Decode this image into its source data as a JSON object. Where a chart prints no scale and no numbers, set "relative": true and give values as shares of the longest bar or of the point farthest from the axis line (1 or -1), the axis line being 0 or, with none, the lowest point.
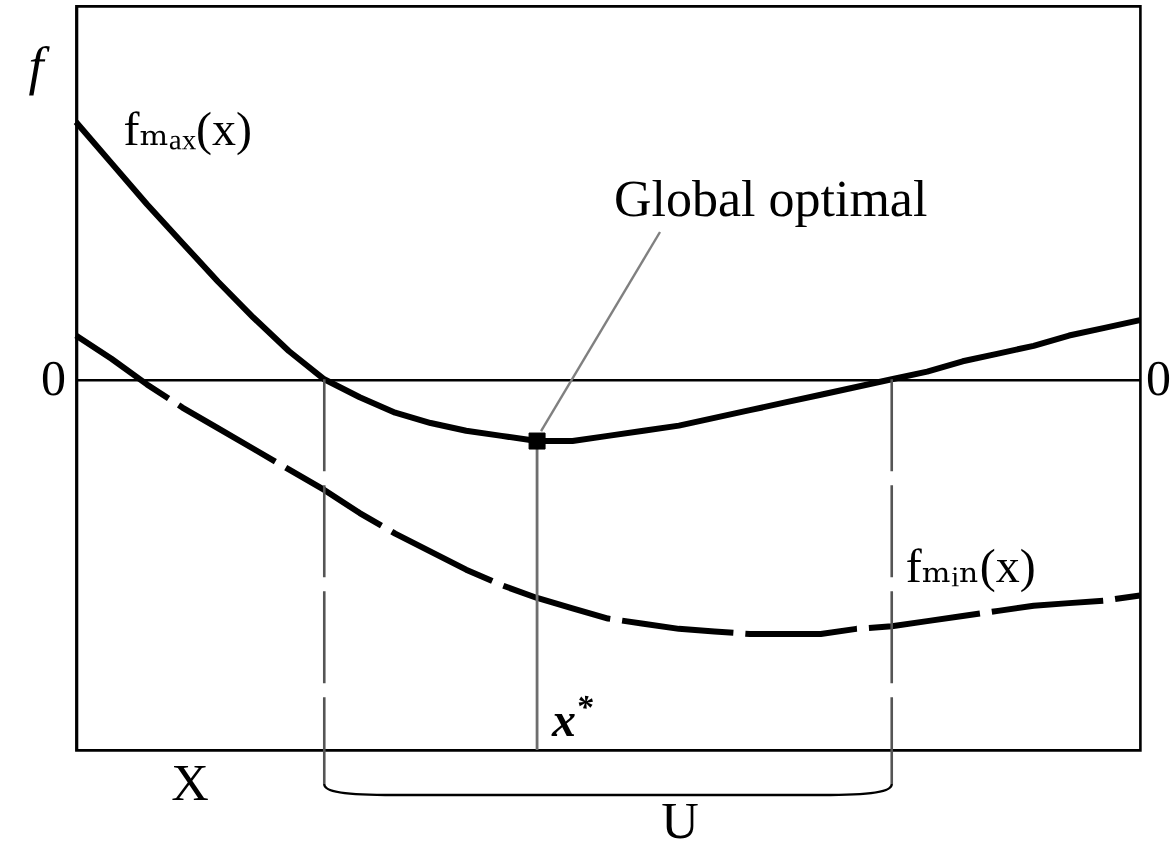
{
  "chart_data": {
    "type": "line",
    "ylabel": "f",
    "relative": true,
    "categories": [
      null,
      null,
      null,
      null,
      null,
      null,
      null,
      null,
      null,
      null,
      null,
      null,
      null,
      null,
      null,
      null,
      null,
      null,
      null,
      null,
      null,
      null,
      null,
      null,
      null,
      null,
      null,
      null,
      null,
      null,
      null
    ],
    "series": [
      {
        "name": "fₘₐₓ(x)",
        "color": "#000000",
        "values": [
          1,
          0.84,
          0.68,
          0.53,
          0.38,
          0.24,
          0.11,
          0,
          -0.07,
          -0.13,
          -0.17,
          -0.2,
          -0.22,
          -0.24,
          -0.24,
          -0.22,
          -0.2,
          -0.18,
          -0.15,
          -0.12,
          -0.09,
          -0.06,
          -0.03,
          0,
          0.03,
          0.07,
          0.1,
          0.13,
          0.17,
          0.2,
          0.23
        ]
      },
      {
        "name": "fₘᵢₙ(x)",
        "color": "#000000",
        "line_style": "dashed",
        "values": [
          0.17,
          0.08,
          -0.02,
          -0.11,
          -0.19,
          -0.27,
          -0.35,
          -0.43,
          -0.52,
          -0.6,
          -0.67,
          -0.74,
          -0.8,
          -0.85,
          -0.89,
          -0.93,
          -0.95,
          -0.97,
          -0.98,
          -0.99,
          -0.99,
          -0.99,
          -0.97,
          -0.96,
          -0.94,
          -0.92,
          -0.9,
          -0.88,
          -0.87,
          -0.86,
          -0.84
        ]
      }
    ],
    "annotations": [
      "Global optimal",
      "x$^{*}$",
      "X",
      "U",
      "0",
      "0"
    ]
  }
}
